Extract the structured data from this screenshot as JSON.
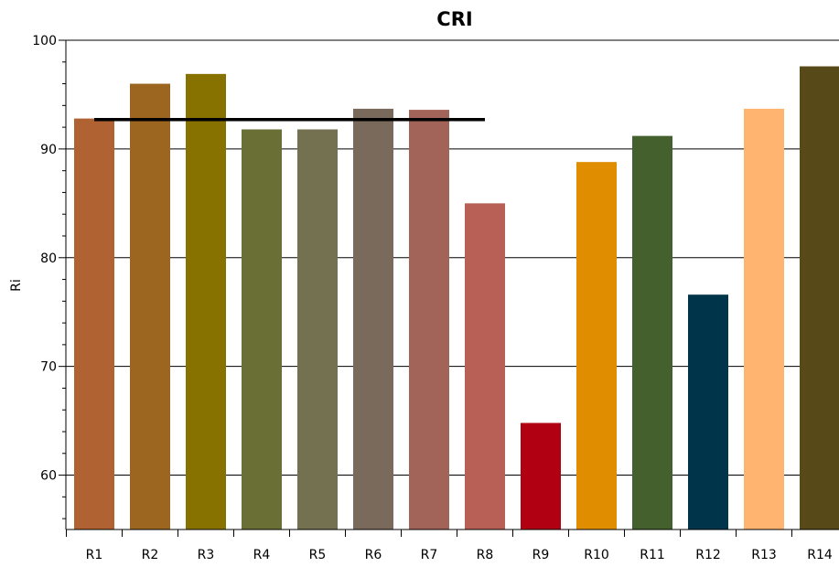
{
  "chart_data": {
    "type": "bar",
    "title": "CRI",
    "xlabel": "",
    "ylabel": "Ri",
    "ylim": [
      55,
      100
    ],
    "yticks": [
      60,
      70,
      80,
      90,
      100
    ],
    "grid": true,
    "categories": [
      "R1",
      "R2",
      "R3",
      "R4",
      "R5",
      "R6",
      "R7",
      "R8",
      "R9",
      "R10",
      "R11",
      "R12",
      "R13",
      "R14"
    ],
    "values": [
      92.8,
      96.0,
      96.9,
      91.8,
      91.8,
      93.7,
      93.6,
      85.0,
      64.8,
      88.8,
      91.2,
      76.6,
      93.7,
      97.6
    ],
    "colors": [
      "#b06232",
      "#9c6620",
      "#877200",
      "#6a7035",
      "#737150",
      "#7a6a5c",
      "#a26358",
      "#b86055",
      "#b10012",
      "#e08e00",
      "#43602d",
      "#00344b",
      "#ffb570",
      "#584a18"
    ],
    "reference_line": {
      "value": 92.7,
      "from": "R1",
      "to": "R8",
      "color": "#000000"
    }
  }
}
